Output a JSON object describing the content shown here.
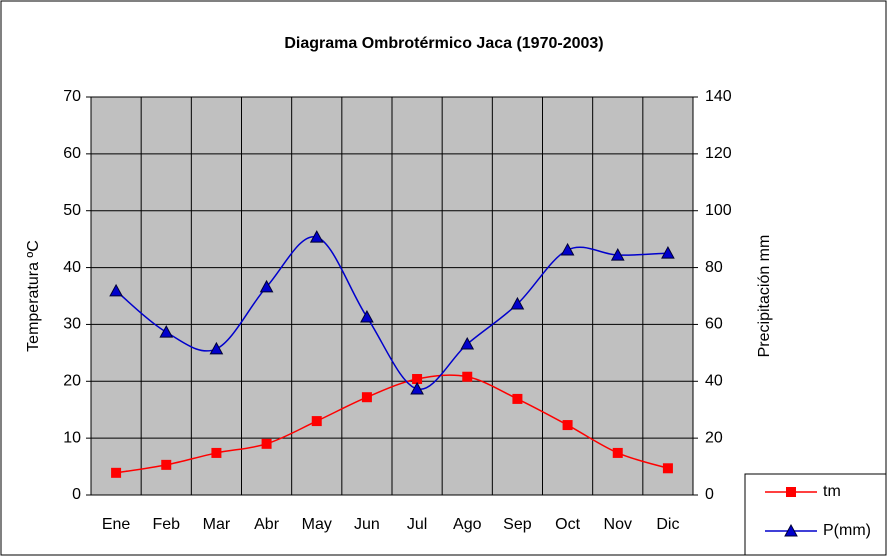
{
  "chart_data": {
    "type": "line",
    "title": "Diagrama Ombrotérmico Jaca (1970-2003)",
    "ylabel": "Temperatura ºC",
    "y2label": "Precipitación mm",
    "categories": [
      "Ene",
      "Feb",
      "Mar",
      "Abr",
      "May",
      "Jun",
      "Jul",
      "Ago",
      "Sep",
      "Oct",
      "Nov",
      "Dic"
    ],
    "series": [
      {
        "name": "tm",
        "color": "#ff0000",
        "marker": "square",
        "values": [
          3.9,
          5.3,
          7.4,
          9.0,
          13.0,
          17.2,
          20.4,
          20.8,
          16.9,
          12.3,
          7.4,
          4.7
        ]
      },
      {
        "name": "P(mm)",
        "color": "#0000cc",
        "marker": "triangle",
        "axis": "y2",
        "values": [
          71.8,
          57.3,
          51.4,
          73.2,
          90.7,
          62.6,
          37.3,
          53.1,
          67.2,
          86.2,
          84.4,
          85.1
        ]
      }
    ],
    "ylim": [
      0,
      70
    ],
    "yticks": [
      0,
      10,
      20,
      30,
      40,
      50,
      60,
      70
    ],
    "y2lim": [
      0,
      140
    ],
    "y2ticks": [
      0,
      20,
      40,
      60,
      80,
      100,
      120,
      140
    ],
    "grid": true,
    "plot_background": "#c0c0c0",
    "smooth": true,
    "legend": "lower right"
  }
}
